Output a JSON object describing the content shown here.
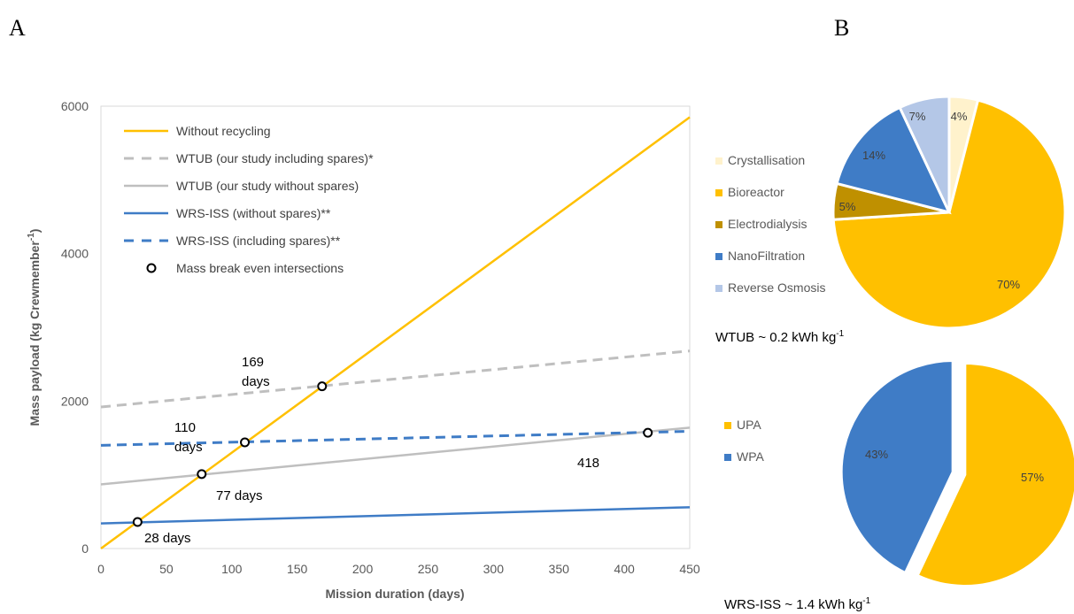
{
  "panels": {
    "a": "A",
    "b": "B"
  },
  "chart_data": [
    {
      "type": "line",
      "xlabel": "Mission duration (days)",
      "ylabel": "Mass payload (kg Crewmember",
      "ylabel_sup": "-1",
      "ylabel_close": ")",
      "xlim": [
        0,
        450
      ],
      "ylim": [
        0,
        6000
      ],
      "xticks": [
        "0",
        "50",
        "100",
        "150",
        "200",
        "250",
        "300",
        "350",
        "400",
        "450"
      ],
      "yticks": [
        "0",
        "2000",
        "4000",
        "6000"
      ],
      "grid": false,
      "legend_position": "top-left",
      "series": [
        {
          "name": "Without recycling",
          "color": "#FFC000",
          "style": "solid",
          "x": [
            0,
            450
          ],
          "y": [
            0,
            5850
          ]
        },
        {
          "name": "WTUB (our study including spares)*",
          "color": "#BFBFBF",
          "style": "dashed",
          "x": [
            0,
            450
          ],
          "y": [
            1920,
            2680
          ]
        },
        {
          "name": "WTUB (our study without spares)",
          "color": "#BFBFBF",
          "style": "solid",
          "x": [
            0,
            450
          ],
          "y": [
            870,
            1640
          ]
        },
        {
          "name": "WRS-ISS (without spares)**",
          "color": "#3F7CC6",
          "style": "solid",
          "x": [
            0,
            450
          ],
          "y": [
            340,
            560
          ]
        },
        {
          "name": "WRS-ISS (including spares)**",
          "color": "#3F7CC6",
          "style": "dashed",
          "x": [
            0,
            450
          ],
          "y": [
            1400,
            1590
          ]
        }
      ],
      "intersections_legend": "Mass break even intersections",
      "intersections": [
        {
          "x": 28,
          "y": 360
        },
        {
          "x": 77,
          "y": 1010
        },
        {
          "x": 110,
          "y": 1440
        },
        {
          "x": 169,
          "y": 2200
        },
        {
          "x": 418,
          "y": 1570
        }
      ],
      "annotations": [
        {
          "lines": [
            "28 days"
          ]
        },
        {
          "lines": [
            "77 days"
          ]
        },
        {
          "lines": [
            "110",
            "days"
          ]
        },
        {
          "lines": [
            "169",
            "days"
          ]
        },
        {
          "lines": [
            "418"
          ]
        }
      ]
    },
    {
      "type": "pie",
      "caption": "WTUB ~ 0.2 kWh kg",
      "caption_sup": "-1",
      "slices": [
        {
          "label": "Crystallisation",
          "value": 4,
          "text": "4%",
          "color": "#FFF2CC"
        },
        {
          "label": "Bioreactor",
          "value": 70,
          "text": "70%",
          "color": "#FFC000"
        },
        {
          "label": "Electrodialysis",
          "value": 5,
          "text": "5%",
          "color": "#BF9000"
        },
        {
          "label": "NanoFiltration",
          "value": 14,
          "text": "14%",
          "color": "#3F7CC6"
        },
        {
          "label": "Reverse Osmosis",
          "value": 7,
          "text": "7%",
          "color": "#B4C7E7"
        }
      ]
    },
    {
      "type": "pie",
      "caption": "WRS-ISS ~ 1.4 kWh kg",
      "caption_sup": "-1",
      "slices": [
        {
          "label": "UPA",
          "value": 57,
          "text": "57%",
          "color": "#FFC000"
        },
        {
          "label": "WPA",
          "value": 43,
          "text": "43%",
          "color": "#3F7CC6"
        }
      ]
    }
  ]
}
